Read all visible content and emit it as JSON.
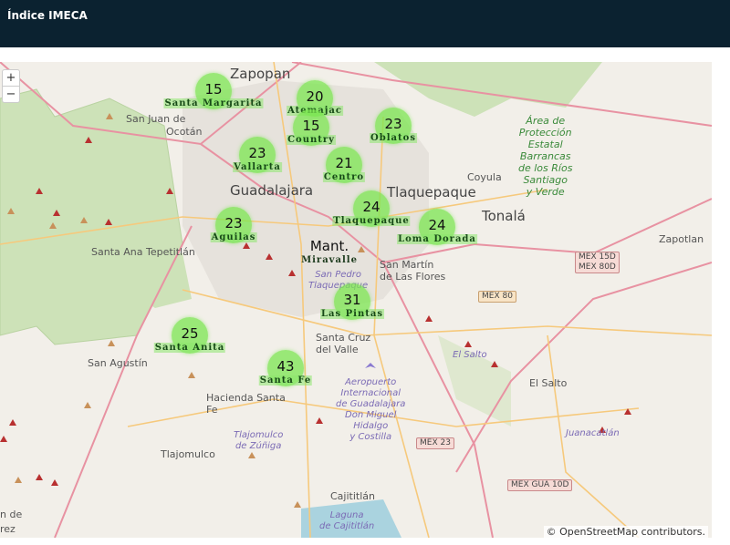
{
  "header": {
    "title": "Índice IMECA"
  },
  "map": {
    "zoom_in": "+",
    "zoom_out": "−",
    "attribution": "© OpenStreetMap contributors.",
    "places": [
      {
        "id": "zapopan",
        "text": "Zapopan",
        "cls": "big"
      },
      {
        "id": "sanjuan",
        "text": "San Juan de",
        "cls": ""
      },
      {
        "id": "ocotan",
        "text": "Ocotán",
        "cls": ""
      },
      {
        "id": "guadalajara",
        "text": "Guadalajara",
        "cls": "big"
      },
      {
        "id": "tlaquepaque",
        "text": "Tlaquepaque",
        "cls": "big"
      },
      {
        "id": "tonala",
        "text": "Tonalá",
        "cls": "big"
      },
      {
        "id": "coyula",
        "text": "Coyula",
        "cls": ""
      },
      {
        "id": "zapotlan",
        "text": "Zapotlan",
        "cls": ""
      },
      {
        "id": "santaana",
        "text": "Santa Ana Tepetitlán",
        "cls": ""
      },
      {
        "id": "sanmartin",
        "text": "San Martín\nde Las Flores",
        "cls": ""
      },
      {
        "id": "sanpedro",
        "text": "San Pedro\nTlaquepaque",
        "cls": "purple"
      },
      {
        "id": "santacruz",
        "text": "Santa Cruz\ndel Valle",
        "cls": ""
      },
      {
        "id": "sanagustin",
        "text": "San Agustín",
        "cls": ""
      },
      {
        "id": "hacienda",
        "text": "Hacienda Santa\nFe",
        "cls": ""
      },
      {
        "id": "aeropuerto",
        "text": "Aeropuerto\nInternacional\nde Guadalajara\nDon Miguel\nHidalgo\ny Costilla",
        "cls": "purple"
      },
      {
        "id": "tlajomulcozu",
        "text": "Tlajomulco\nde Zúñiga",
        "cls": "purple"
      },
      {
        "id": "tlajomulco",
        "text": "Tlajomulco",
        "cls": ""
      },
      {
        "id": "elsalto",
        "text": "El Salto",
        "cls": ""
      },
      {
        "id": "elsalto2",
        "text": "El Salto",
        "cls": "purple"
      },
      {
        "id": "juanacatlan",
        "text": "Juanacatlán",
        "cls": "purple"
      },
      {
        "id": "cajititlan",
        "text": "Cajititlán",
        "cls": ""
      },
      {
        "id": "laguna",
        "text": "Laguna\nde Cajititlán",
        "cls": "purple"
      },
      {
        "id": "area",
        "text": "Área de\nProtección\nEstatal\nBarrancas\nde los Ríos\nSantiago\ny Verde",
        "cls": "green"
      },
      {
        "id": "rez",
        "text": "rez",
        "cls": ""
      },
      {
        "id": "nde",
        "text": "n de",
        "cls": ""
      }
    ],
    "shields": [
      {
        "id": "mex15",
        "text": "MEX 15D\nMEX 80D",
        "cls": ""
      },
      {
        "id": "mex80",
        "text": "MEX 80",
        "cls": "y"
      },
      {
        "id": "mex23",
        "text": "MEX 23",
        "cls": ""
      },
      {
        "id": "mexgua",
        "text": "MEX GUA 10D",
        "cls": ""
      }
    ],
    "stations": [
      {
        "name": "Santa Margarita",
        "value": "15"
      },
      {
        "name": "Atemajac",
        "value": "20"
      },
      {
        "name": "Country",
        "value": "15"
      },
      {
        "name": "Oblatos",
        "value": "23"
      },
      {
        "name": "Vallarta",
        "value": "23"
      },
      {
        "name": "Centro",
        "value": "21"
      },
      {
        "name": "Tlaquepaque",
        "value": "24"
      },
      {
        "name": "Loma Dorada",
        "value": "24"
      },
      {
        "name": "Aguilas",
        "value": "23"
      },
      {
        "name": "Miravalle",
        "value": "Mant."
      },
      {
        "name": "Las Pintas",
        "value": "31"
      },
      {
        "name": "Santa Anita",
        "value": "25"
      },
      {
        "name": "Santa Fe",
        "value": "43"
      }
    ],
    "marker_color": "#7be650"
  }
}
